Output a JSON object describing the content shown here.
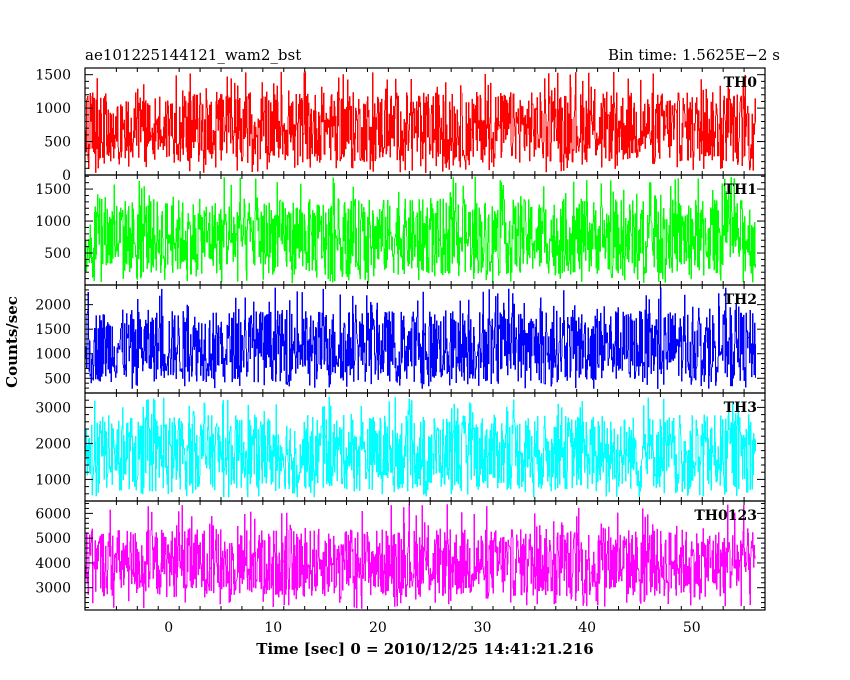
{
  "header": {
    "left": "ae101225144121_wam2_bst",
    "right": "Bin time: 1.5625E−2 s"
  },
  "axes": {
    "xlabel": "Time [sec] 0 = 2010/12/25 14:41:21.216",
    "ylabel": "Counts/sec"
  },
  "chart_data": {
    "type": "line",
    "title": "ae101225144121_wam2_bst",
    "subtitle": "Bin time: 1.5625E−2 s",
    "xlabel": "Time [sec] 0 = 2010/12/25 14:41:21.216",
    "ylabel": "Counts/sec",
    "xlim": [
      -8,
      57
    ],
    "x_ticks": [
      0,
      10,
      20,
      30,
      40,
      50
    ],
    "x_tick_labels": [
      "0",
      "10",
      "20",
      "30",
      "40",
      "50"
    ],
    "data_x_range": [
      -7.9,
      56.1
    ],
    "bin_time_s": 0.015625,
    "grid": false,
    "legend": "none",
    "panels": [
      {
        "name": "TH0",
        "color": "#ff0000",
        "ylim": [
          0,
          1600
        ],
        "y_ticks": [
          0,
          500,
          1000,
          1500
        ],
        "y_tick_labels": [
          "0",
          "500",
          "1000",
          "1500"
        ],
        "mean": 670,
        "low": 180,
        "high": 1250,
        "min_spike": 30,
        "max_spike": 1550
      },
      {
        "name": "TH1",
        "color": "#00ff00",
        "ylim": [
          0,
          1720
        ],
        "y_ticks": [
          500,
          1000,
          1500
        ],
        "y_tick_labels": [
          "500",
          "1000",
          "1500"
        ],
        "mean": 700,
        "low": 160,
        "high": 1350,
        "min_spike": 20,
        "max_spike": 1700
      },
      {
        "name": "TH2",
        "color": "#0000ff",
        "ylim": [
          200,
          2400
        ],
        "y_ticks": [
          500,
          1000,
          1500,
          2000
        ],
        "y_tick_labels": [
          "500",
          "1000",
          "1500",
          "2000"
        ],
        "mean": 1150,
        "low": 420,
        "high": 1900,
        "min_spike": 280,
        "max_spike": 2350
      },
      {
        "name": "TH3",
        "color": "#00ffff",
        "ylim": [
          400,
          3400
        ],
        "y_ticks": [
          1000,
          2000,
          3000
        ],
        "y_tick_labels": [
          "1000",
          "2000",
          "3000"
        ],
        "mean": 1650,
        "low": 700,
        "high": 2800,
        "min_spike": 500,
        "max_spike": 3300
      },
      {
        "name": "TH0123",
        "color": "#ff00ff",
        "ylim": [
          2100,
          6500
        ],
        "y_ticks": [
          3000,
          4000,
          5000,
          6000
        ],
        "y_tick_labels": [
          "3000",
          "4000",
          "5000",
          "6000"
        ],
        "mean": 3900,
        "low": 2600,
        "high": 5400,
        "min_spike": 2150,
        "max_spike": 6400
      }
    ]
  }
}
